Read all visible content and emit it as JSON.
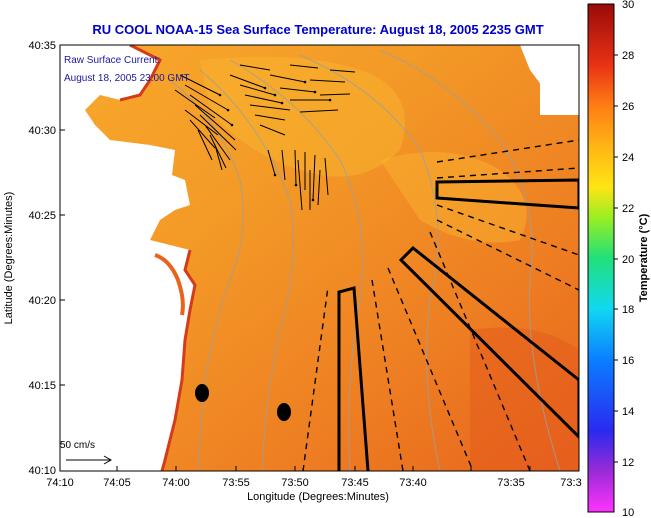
{
  "title": "RU COOL  NOAA-15  Sea Surface Temperature:  August 18, 2005 2235 GMT",
  "overlay": {
    "current_label": "Raw Surface Current:",
    "current_time": "August 18, 2005 23:00 GMT",
    "scale_label": "50 cm/s"
  },
  "axes": {
    "xlabel": "Longitude (Degrees:Minutes)",
    "ylabel": "Latitude (Degrees:Minutes)",
    "xticks": [
      "74:10",
      "74:05",
      "74:00",
      "73:55",
      "73:50",
      "73:45",
      "73:40",
      "73:35",
      "73:3"
    ],
    "yticks": [
      "40:35",
      "40:30",
      "40:25",
      "40:20",
      "40:15",
      "40:10"
    ]
  },
  "colorbar": {
    "label": "Temperature (°C)",
    "ticks": [
      "30",
      "28",
      "26",
      "24",
      "22",
      "20",
      "18",
      "16",
      "14",
      "12",
      "10"
    ]
  },
  "colors": {
    "title": "#0000cc",
    "sea_main": "#f08a25",
    "land": "#ffffff",
    "coast_red": "#d53a1a"
  }
}
